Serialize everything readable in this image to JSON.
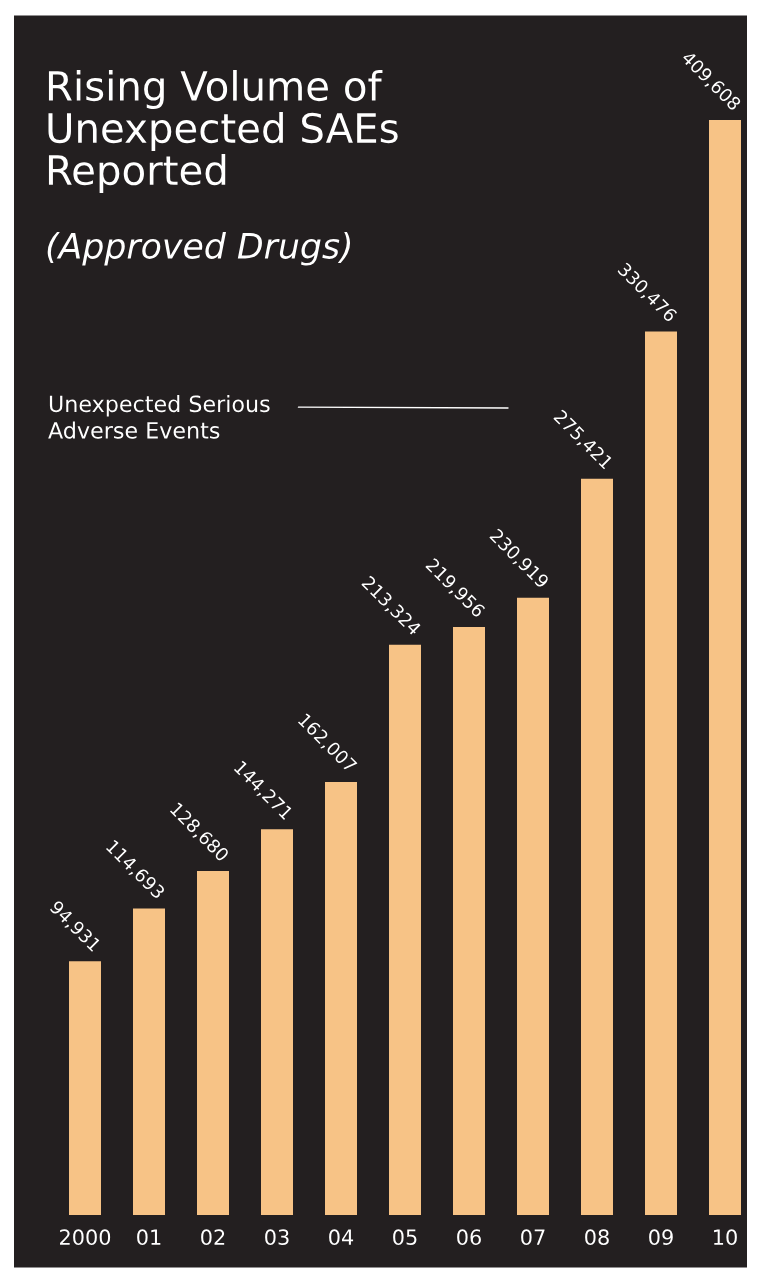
{
  "chart_data": {
    "type": "bar",
    "title": "Rising Volume of\nUnexpected SAEs\nReported",
    "subtitle": "(Approved Drugs)",
    "categories": [
      "2000",
      "01",
      "02",
      "03",
      "04",
      "05",
      "06",
      "07",
      "08",
      "09",
      "10"
    ],
    "series": [
      {
        "name": "Unexpected Serious\nAdverse Events",
        "color": "#f7c386",
        "values": [
          94931,
          114693,
          128680,
          144271,
          162007,
          213324,
          219956,
          230919,
          275421,
          330476,
          409608
        ],
        "value_labels": [
          "94,931",
          "114,693",
          "128,680",
          "144,271",
          "162,007",
          "213,324",
          "219,956",
          "230,919",
          "275,421",
          "330,476",
          "409,608"
        ]
      }
    ],
    "grid": false,
    "legend": false
  }
}
